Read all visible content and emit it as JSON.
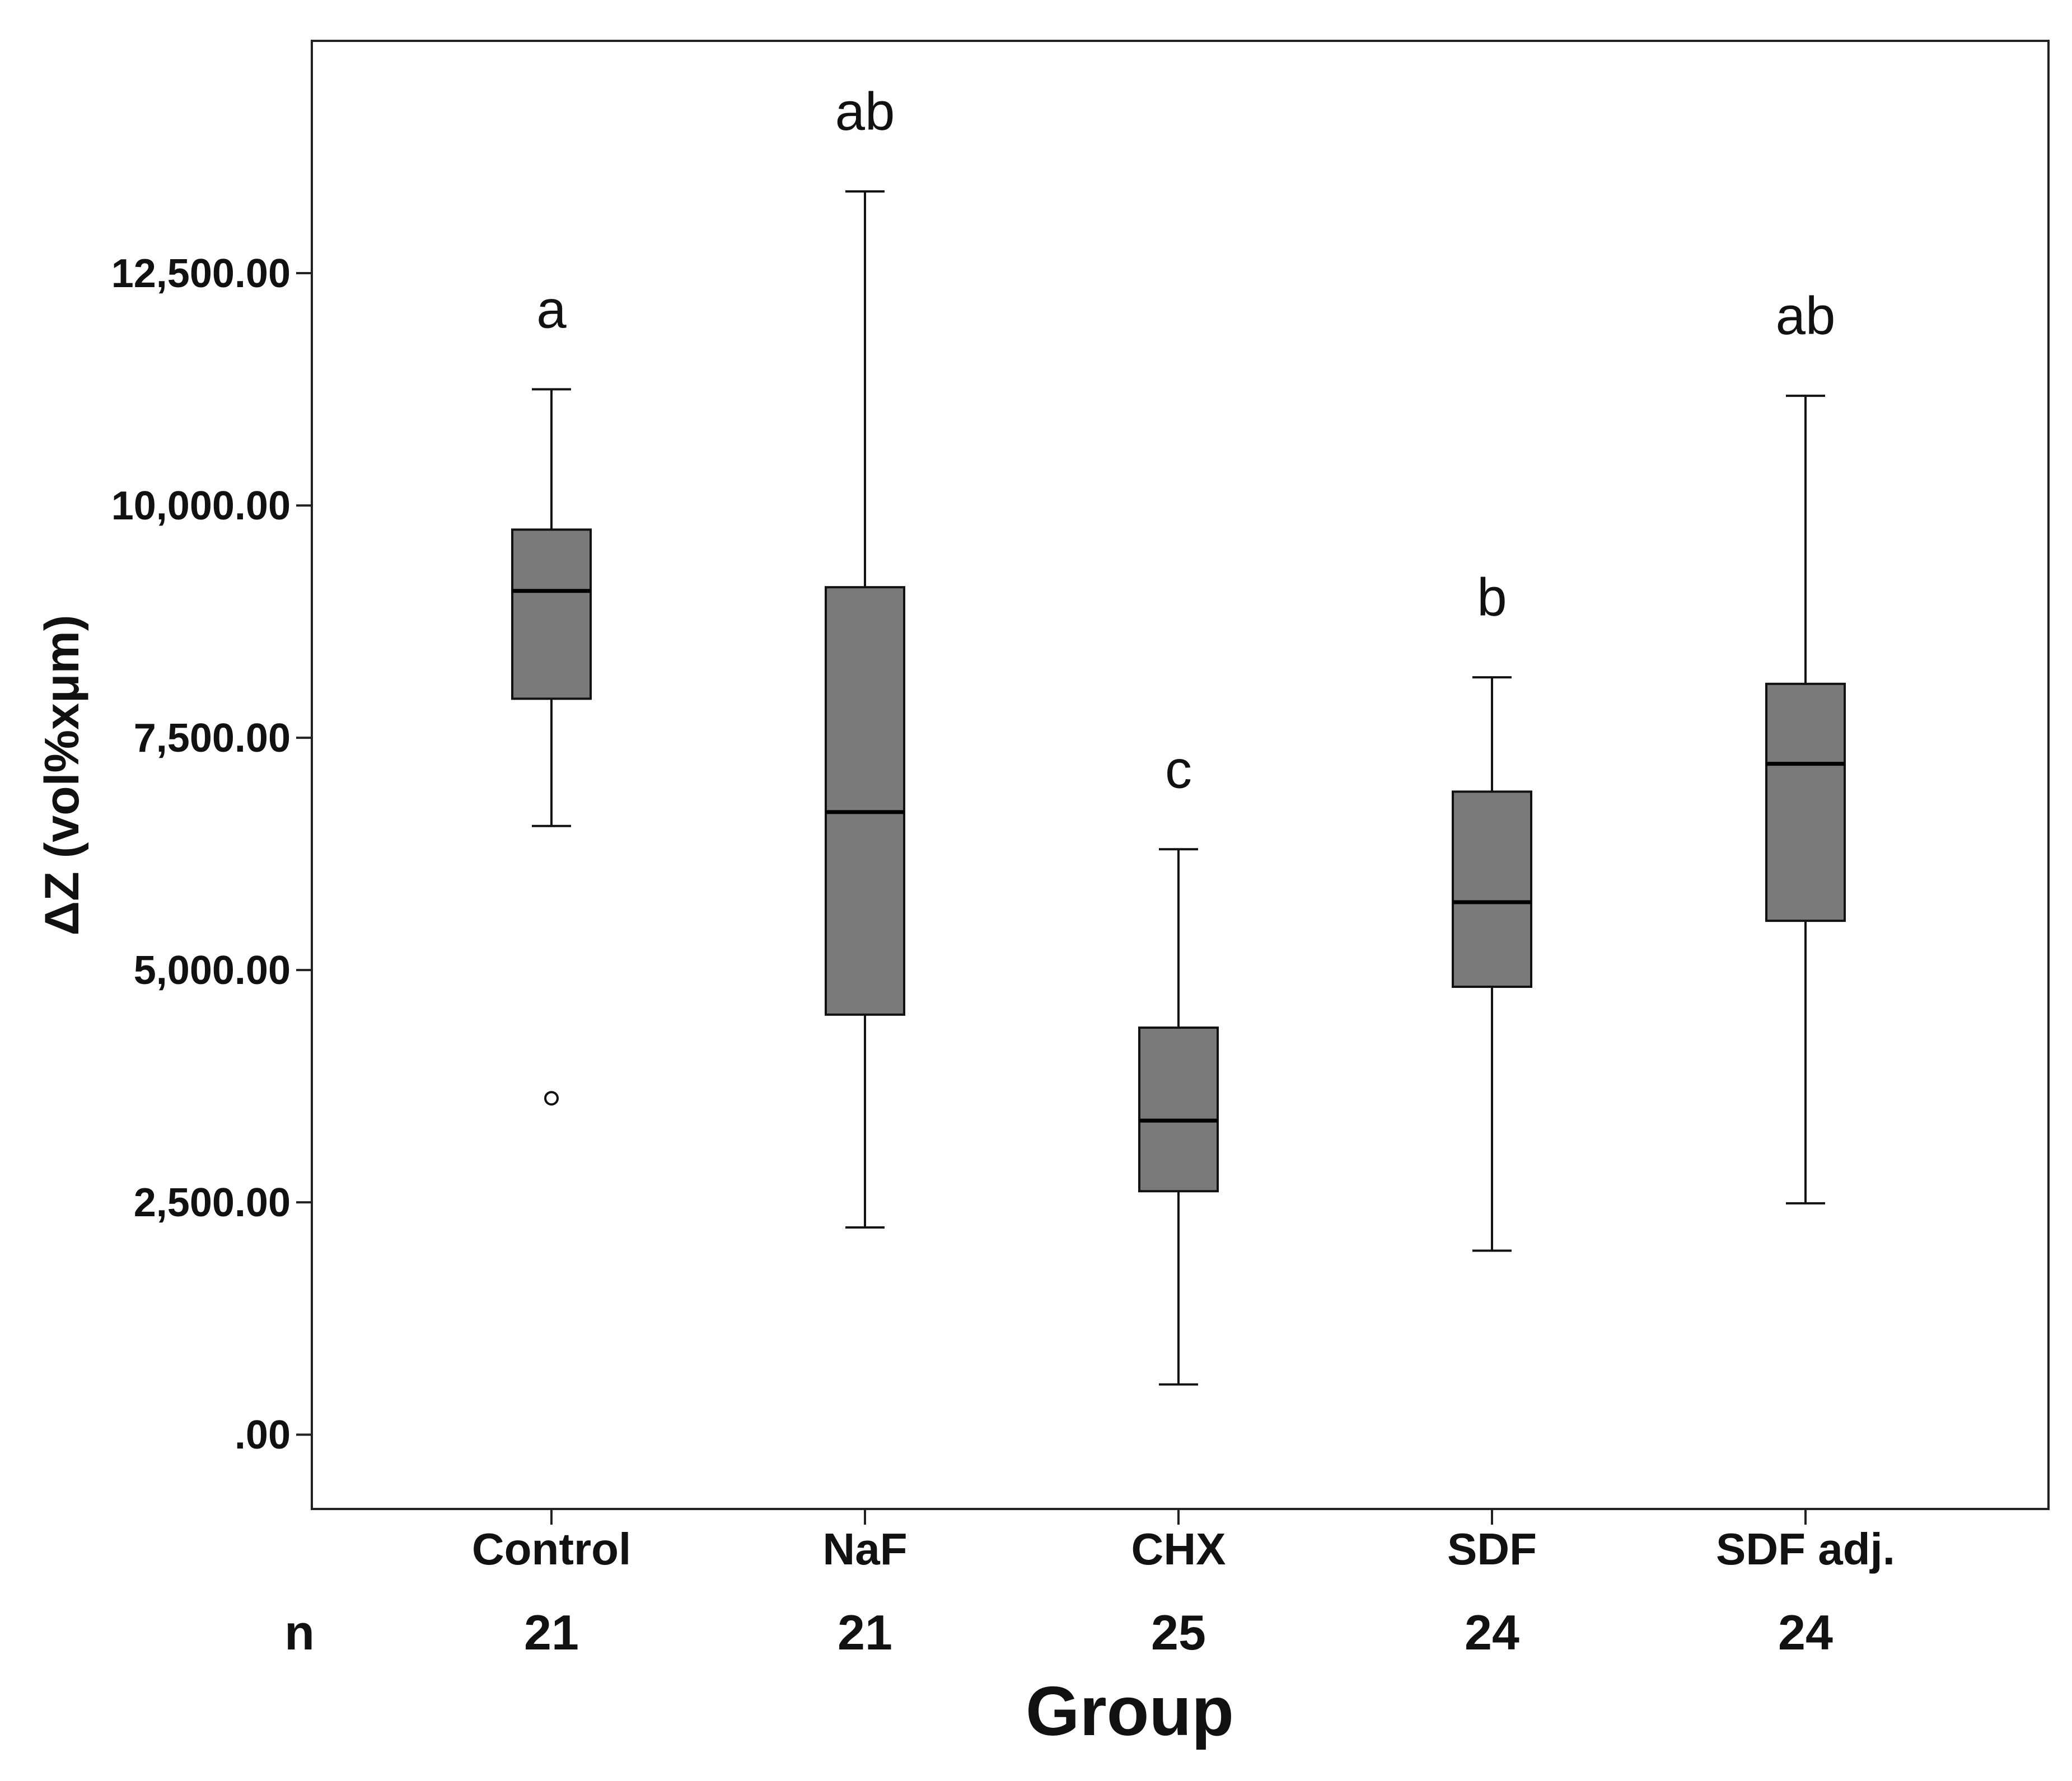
{
  "chart_data": {
    "type": "boxplot",
    "title": "",
    "xlabel": "Group",
    "ylabel": "ΔZ (vol%xμm)",
    "ylim": [
      -800,
      15000
    ],
    "yticks": [
      {
        "value": 0,
        "label": ".00"
      },
      {
        "value": 2500,
        "label": "2,500.00"
      },
      {
        "value": 5000,
        "label": "5,000.00"
      },
      {
        "value": 7500,
        "label": "7,500.00"
      },
      {
        "value": 10000,
        "label": "10,000.00"
      },
      {
        "value": 12500,
        "label": "12,500.00"
      }
    ],
    "n_header": "n",
    "box_color": "#7a7a7a",
    "groups": [
      {
        "name": "Control",
        "n": "21",
        "letter": "a",
        "whisker_low": 6550,
        "q1": 7920,
        "median": 9080,
        "q3": 9740,
        "whisker_high": 11250,
        "outliers": [
          3620
        ]
      },
      {
        "name": "NaF",
        "n": "21",
        "letter": "ab",
        "whisker_low": 2230,
        "q1": 4520,
        "median": 6700,
        "q3": 9120,
        "whisker_high": 13380,
        "outliers": []
      },
      {
        "name": "CHX",
        "n": "25",
        "letter": "c",
        "whisker_low": 540,
        "q1": 2620,
        "median": 3380,
        "q3": 4380,
        "whisker_high": 6300,
        "outliers": []
      },
      {
        "name": "SDF",
        "n": "24",
        "letter": "b",
        "whisker_low": 1980,
        "q1": 4820,
        "median": 5730,
        "q3": 6920,
        "whisker_high": 8150,
        "outliers": []
      },
      {
        "name": "SDF adj.",
        "n": "24",
        "letter": "ab",
        "whisker_low": 2490,
        "q1": 5530,
        "median": 7220,
        "q3": 8080,
        "whisker_high": 11180,
        "outliers": []
      }
    ]
  }
}
